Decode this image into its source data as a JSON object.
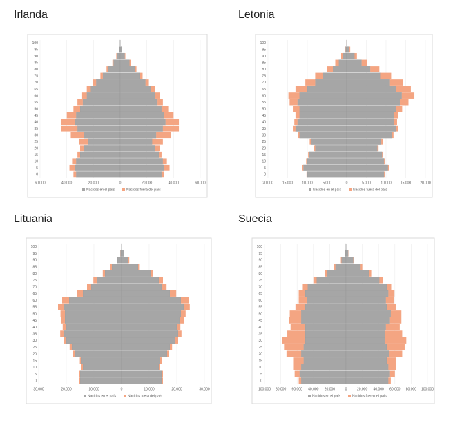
{
  "chart_data": [
    {
      "type": "pyramid",
      "title": "Irlanda",
      "categories": [
        "0",
        "5",
        "10",
        "15",
        "20",
        "25",
        "30",
        "35",
        "40",
        "45",
        "50",
        "55",
        "60",
        "65",
        "70",
        "75",
        "80",
        "85",
        "90",
        "95",
        "100"
      ],
      "series": [
        {
          "name": "Nacidos en el país",
          "color": "#a6a6a6",
          "left": [
            -33000,
            -34000,
            -33000,
            -30000,
            -27000,
            -24000,
            -27000,
            -32000,
            -34000,
            -33000,
            -30000,
            -28000,
            -25000,
            -22000,
            -18000,
            -13000,
            -9000,
            -5000,
            -2500,
            -800,
            -100
          ],
          "right": [
            31000,
            33000,
            32000,
            29000,
            26000,
            24000,
            27000,
            32000,
            34000,
            33000,
            31000,
            28000,
            26000,
            23000,
            19000,
            15000,
            11000,
            7000,
            3500,
            1200,
            150
          ]
        },
        {
          "name": "Nacidos fuera del país",
          "color": "#f4a582",
          "left": [
            -2000,
            -4000,
            -3000,
            -2000,
            -3000,
            -7000,
            -10000,
            -12000,
            -10000,
            -7000,
            -5000,
            -4000,
            -3500,
            -3000,
            -2500,
            -1800,
            -1200,
            -800,
            -400,
            -100,
            0
          ],
          "right": [
            2000,
            4000,
            3000,
            2000,
            3500,
            8000,
            11000,
            12000,
            10000,
            7000,
            5000,
            4000,
            3500,
            3000,
            2500,
            1800,
            1200,
            800,
            400,
            100,
            0
          ]
        }
      ],
      "xlim": [
        -60000,
        60000
      ],
      "xticks": [
        {
          "value": -60000,
          "label": "60.000"
        },
        {
          "value": -40000,
          "label": "40.000"
        },
        {
          "value": -20000,
          "label": "20.000"
        },
        0,
        {
          "value": 20000,
          "label": "20.000"
        },
        {
          "value": 40000,
          "label": "40.000"
        },
        {
          "value": 60000,
          "label": "60.000"
        }
      ],
      "grid": true
    },
    {
      "type": "pyramid",
      "title": "Letonia",
      "categories": [
        "0",
        "5",
        "10",
        "15",
        "20",
        "25",
        "30",
        "35",
        "40",
        "45",
        "50",
        "55",
        "60",
        "65",
        "70",
        "75",
        "80",
        "85",
        "90",
        "95",
        "100"
      ],
      "series": [
        {
          "name": "Nacidos en el país",
          "color": "#a6a6a6",
          "left": [
            -10000,
            -11000,
            -10000,
            -9500,
            -8000,
            -9000,
            -12000,
            -13000,
            -12500,
            -12000,
            -12000,
            -12500,
            -12000,
            -10000,
            -8000,
            -6000,
            -3500,
            -2000,
            -1000,
            -300,
            -30
          ],
          "right": [
            9500,
            10500,
            9500,
            9000,
            7800,
            8800,
            11500,
            12500,
            12000,
            12000,
            12500,
            13500,
            14000,
            12500,
            11000,
            8500,
            6000,
            3800,
            2000,
            700,
            80
          ]
        },
        {
          "name": "Nacidos fuera del país",
          "color": "#f4a582",
          "left": [
            -200,
            -300,
            -300,
            -300,
            -300,
            -400,
            -400,
            -500,
            -800,
            -1000,
            -1500,
            -2000,
            -2800,
            -3000,
            -2500,
            -2000,
            -1500,
            -900,
            -400,
            -100,
            -10
          ],
          "right": [
            200,
            300,
            300,
            300,
            300,
            400,
            400,
            500,
            800,
            1100,
            1600,
            2200,
            3200,
            3800,
            3300,
            2800,
            2300,
            1400,
            600,
            200,
            20
          ]
        }
      ],
      "xlim": [
        -20000,
        20000
      ],
      "xticks": [
        {
          "value": -20000,
          "label": "20.000"
        },
        {
          "value": -15000,
          "label": "15.000"
        },
        {
          "value": -10000,
          "label": "10.000"
        },
        {
          "value": -5000,
          "label": "5.000"
        },
        0,
        {
          "value": 5000,
          "label": "5.000"
        },
        {
          "value": 10000,
          "label": "10.000"
        },
        {
          "value": 15000,
          "label": "15.000"
        },
        {
          "value": 20000,
          "label": "20.000"
        }
      ],
      "grid": true
    },
    {
      "type": "pyramid",
      "title": "Lituania",
      "categories": [
        "0",
        "5",
        "10",
        "15",
        "20",
        "25",
        "30",
        "35",
        "40",
        "45",
        "50",
        "55",
        "60",
        "65",
        "70",
        "75",
        "80",
        "85",
        "90",
        "95",
        "100"
      ],
      "series": [
        {
          "name": "Nacidos en el país",
          "color": "#a6a6a6",
          "left": [
            -15000,
            -15000,
            -14000,
            -14500,
            -17000,
            -18000,
            -20000,
            -21000,
            -20000,
            -20500,
            -20500,
            -21000,
            -19000,
            -14000,
            -11000,
            -9000,
            -6000,
            -3500,
            -1500,
            -400,
            -40
          ],
          "right": [
            14500,
            14500,
            13500,
            14000,
            16500,
            17500,
            19500,
            20500,
            20000,
            21000,
            21500,
            22500,
            21500,
            17500,
            14500,
            13500,
            10500,
            6000,
            2500,
            800,
            60
          ]
        },
        {
          "name": "Nacidos fuera del país",
          "color": "#f4a582",
          "left": [
            -500,
            -500,
            -500,
            -600,
            -700,
            -800,
            -1000,
            -1200,
            -1300,
            -1400,
            -1600,
            -2000,
            -2500,
            -2000,
            -1500,
            -1200,
            -800,
            -500,
            -200,
            -50,
            0
          ],
          "right": [
            500,
            500,
            500,
            600,
            700,
            800,
            1000,
            1200,
            1300,
            1500,
            1700,
            2200,
            2800,
            2300,
            1800,
            1500,
            1000,
            600,
            300,
            80,
            0
          ]
        }
      ],
      "xlim": [
        -30000,
        30000
      ],
      "xticks": [
        {
          "value": -30000,
          "label": "30.000"
        },
        {
          "value": -20000,
          "label": "20.000"
        },
        {
          "value": -10000,
          "label": "10.000"
        },
        0,
        {
          "value": 10000,
          "label": "10.000"
        },
        {
          "value": 20000,
          "label": "20.000"
        },
        {
          "value": 30000,
          "label": "30.000"
        }
      ],
      "grid": true
    },
    {
      "type": "pyramid",
      "title": "Suecia",
      "categories": [
        "0",
        "5",
        "10",
        "15",
        "20",
        "25",
        "30",
        "35",
        "40",
        "45",
        "50",
        "55",
        "60",
        "65",
        "70",
        "75",
        "80",
        "85",
        "90",
        "95",
        "100"
      ],
      "series": [
        {
          "name": "Nacidos en el país",
          "color": "#a6a6a6",
          "left": [
            -55000,
            -57000,
            -55000,
            -52000,
            -55000,
            -52000,
            -50000,
            -50000,
            -50000,
            -55000,
            -55000,
            -50000,
            -48000,
            -50000,
            -47000,
            -36000,
            -23000,
            -13000,
            -5500,
            -1500,
            -150
          ],
          "right": [
            52000,
            54000,
            52000,
            50000,
            53000,
            50000,
            48000,
            48000,
            49000,
            54000,
            55000,
            50000,
            49000,
            52000,
            50000,
            41000,
            28000,
            18000,
            9000,
            2800,
            300
          ]
        },
        {
          "name": "Nacidos fuera del país",
          "color": "#f4a582",
          "left": [
            -3000,
            -6000,
            -9000,
            -12000,
            -18000,
            -24000,
            -28000,
            -22000,
            -18000,
            -15000,
            -14000,
            -12000,
            -10000,
            -8000,
            -6000,
            -4000,
            -3000,
            -2000,
            -800,
            -200,
            0
          ],
          "right": [
            3000,
            6000,
            9000,
            11000,
            16000,
            22000,
            26000,
            21000,
            17000,
            14000,
            13000,
            11000,
            9500,
            7500,
            5500,
            4000,
            3000,
            2000,
            900,
            250,
            0
          ]
        }
      ],
      "xlim": [
        -100000,
        100000
      ],
      "xticks": [
        {
          "value": -100000,
          "label": "100.000"
        },
        {
          "value": -80000,
          "label": "80.000"
        },
        {
          "value": -60000,
          "label": "60.000"
        },
        {
          "value": -40000,
          "label": "40.000"
        },
        {
          "value": -20000,
          "label": "20.000"
        },
        0,
        {
          "value": 20000,
          "label": "20.000"
        },
        {
          "value": 40000,
          "label": "40.000"
        },
        {
          "value": 60000,
          "label": "60.000"
        },
        {
          "value": 80000,
          "label": "80.000"
        },
        {
          "value": 100000,
          "label": "100.000"
        }
      ],
      "grid": true
    }
  ]
}
